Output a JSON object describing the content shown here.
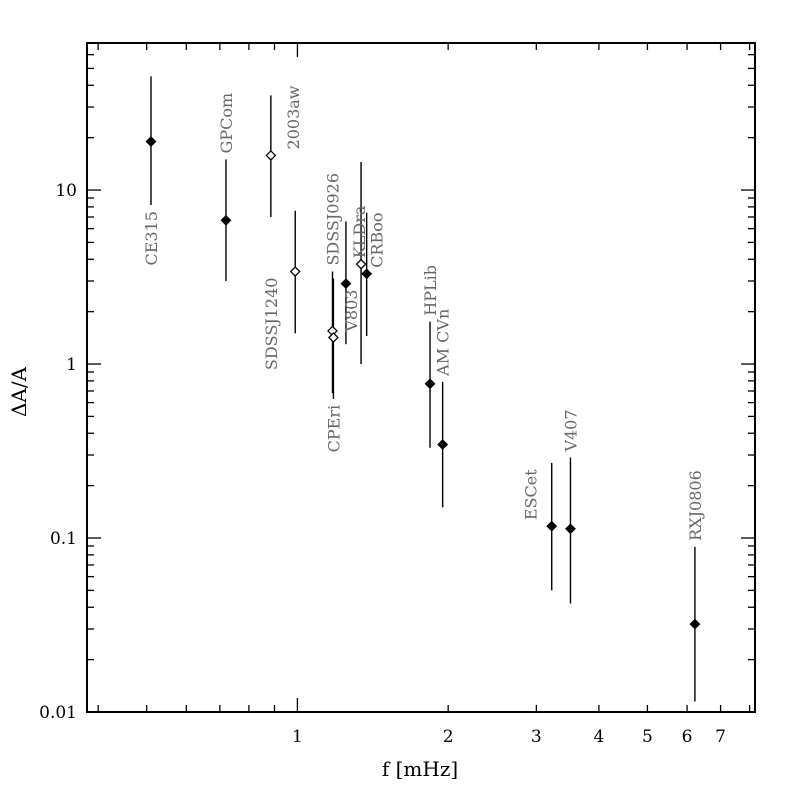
{
  "chart_data": {
    "type": "scatter",
    "title": "",
    "xlabel": "f [mHz]",
    "ylabel": "ΔA/A",
    "xscale": "log",
    "yscale": "log",
    "xlim": [
      0.38,
      8.2
    ],
    "ylim": [
      0.01,
      70
    ],
    "grid": false,
    "legend": "none",
    "x_tick_labels": [
      "1",
      "2",
      "3",
      "4",
      "5",
      "6",
      "7"
    ],
    "x_tick_values": [
      1,
      2,
      3,
      4,
      5,
      6,
      7
    ],
    "y_tick_labels": [
      "0.01",
      "0.1",
      "1",
      "10"
    ],
    "y_tick_values": [
      0.01,
      0.1,
      1,
      10
    ],
    "points": [
      {
        "label": "CE315",
        "x": 0.51,
        "y": 19.0,
        "y_low": 8.2,
        "y_high": 45.0,
        "marker": "filled"
      },
      {
        "label": "GPCom",
        "x": 0.72,
        "y": 6.7,
        "y_low": 3.0,
        "y_high": 15.0,
        "marker": "filled"
      },
      {
        "label": "2003aw",
        "x": 0.885,
        "y": 15.8,
        "y_low": 7.0,
        "y_high": 35.0,
        "marker": "open"
      },
      {
        "label": "SDSSJ1240",
        "x": 0.99,
        "y": 3.4,
        "y_low": 1.5,
        "y_high": 7.6,
        "marker": "open"
      },
      {
        "label": "SDSSJ0926",
        "x": 1.175,
        "y": 1.55,
        "y_low": 0.68,
        "y_high": 3.4,
        "marker": "open"
      },
      {
        "label": "CPEri",
        "x": 1.18,
        "y": 1.42,
        "y_low": 0.63,
        "y_high": 3.1,
        "marker": "open"
      },
      {
        "label": "V803",
        "x": 1.25,
        "y": 2.9,
        "y_low": 1.3,
        "y_high": 6.6,
        "marker": "filled"
      },
      {
        "label": "KLDra",
        "x": 1.34,
        "y": 3.75,
        "y_low": 1.0,
        "y_high": 14.5,
        "marker": "open"
      },
      {
        "label": "CRBoo",
        "x": 1.375,
        "y": 3.3,
        "y_low": 1.45,
        "y_high": 7.4,
        "marker": "filled"
      },
      {
        "label": "HPLib",
        "x": 1.84,
        "y": 0.77,
        "y_low": 0.33,
        "y_high": 1.75,
        "marker": "filled"
      },
      {
        "label": "AM CVn",
        "x": 1.95,
        "y": 0.345,
        "y_low": 0.15,
        "y_high": 0.79,
        "marker": "filled"
      },
      {
        "label": "ESCet",
        "x": 3.22,
        "y": 0.117,
        "y_low": 0.05,
        "y_high": 0.27,
        "marker": "filled"
      },
      {
        "label": "V407",
        "x": 3.51,
        "y": 0.113,
        "y_low": 0.042,
        "y_high": 0.29,
        "marker": "filled"
      },
      {
        "label": "RXJ0806",
        "x": 6.22,
        "y": 0.032,
        "y_low": 0.0115,
        "y_high": 0.089,
        "marker": "filled"
      }
    ]
  }
}
